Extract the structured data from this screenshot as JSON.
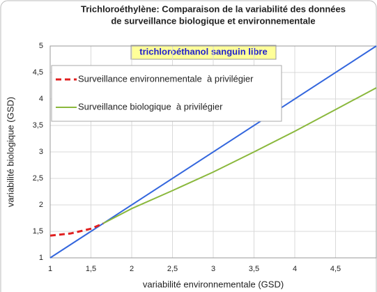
{
  "chart_data": {
    "type": "line",
    "title": [
      "Trichloroéthylène: Comparaison de la variabilité des données",
      "de surveillance biologique et environnementale"
    ],
    "subtitle": "trichloroéthanol sanguin libre",
    "xlabel": "variabilité environnementale (GSD)",
    "ylabel": "variabilité biologique (GSD)",
    "xlim": [
      1,
      5
    ],
    "ylim": [
      1,
      5
    ],
    "xticks": [
      1,
      {
        "value": 1.5,
        "label": "1,5"
      },
      2,
      {
        "value": 2.5,
        "label": "2,5"
      },
      3,
      {
        "value": 3.5,
        "label": "3,5"
      },
      4,
      {
        "value": 4.5,
        "label": "4,5"
      }
    ],
    "yticks": [
      1,
      {
        "value": 1.5,
        "label": "1,5"
      },
      2,
      {
        "value": 2.5,
        "label": "2,5"
      },
      3,
      {
        "value": 3.5,
        "label": "3,5"
      },
      4,
      {
        "value": 4.5,
        "label": "4,5"
      },
      5
    ],
    "grid": true,
    "legend": "upper left",
    "series": [
      {
        "color": "#3366dd",
        "x": [
          1,
          5
        ],
        "values": [
          1,
          5
        ]
      },
      {
        "name": "Surveillance environnementale  à privilégier",
        "color": "#e02020",
        "dashed": true,
        "x": [
          1,
          1.25,
          1.5,
          1.65
        ],
        "values": [
          1.42,
          1.46,
          1.55,
          1.65
        ]
      },
      {
        "name": "Surveillance biologique  à privilégier",
        "color": "#8ab83c",
        "x": [
          1.65,
          2,
          2.5,
          3,
          3.5,
          4,
          4.5,
          5
        ],
        "values": [
          1.65,
          1.93,
          2.27,
          2.62,
          3.0,
          3.39,
          3.8,
          4.21
        ]
      }
    ]
  }
}
